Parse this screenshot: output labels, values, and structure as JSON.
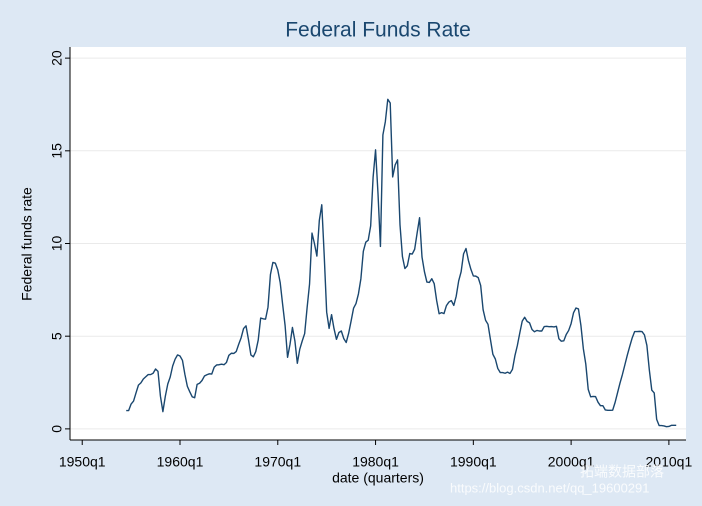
{
  "chart_data": {
    "type": "line",
    "title": "Federal Funds Rate",
    "x_label": "date (quarters)",
    "y_label": "Federal funds rate",
    "watermark": [
      "拓端数据部落",
      "https://blog.csdn.net/qq_19600291"
    ],
    "x": [
      "1954q3",
      "1954q4",
      "1955q1",
      "1955q2",
      "1955q3",
      "1955q4",
      "1956q1",
      "1956q2",
      "1956q3",
      "1956q4",
      "1957q1",
      "1957q2",
      "1957q3",
      "1957q4",
      "1958q1",
      "1958q2",
      "1958q3",
      "1958q4",
      "1959q1",
      "1959q2",
      "1959q3",
      "1959q4",
      "1960q1",
      "1960q2",
      "1960q3",
      "1960q4",
      "1961q1",
      "1961q2",
      "1961q3",
      "1961q4",
      "1962q1",
      "1962q2",
      "1962q3",
      "1962q4",
      "1963q1",
      "1963q2",
      "1963q3",
      "1963q4",
      "1964q1",
      "1964q2",
      "1964q3",
      "1964q4",
      "1965q1",
      "1965q2",
      "1965q3",
      "1965q4",
      "1966q1",
      "1966q2",
      "1966q3",
      "1966q4",
      "1967q1",
      "1967q2",
      "1967q3",
      "1967q4",
      "1968q1",
      "1968q2",
      "1968q3",
      "1968q4",
      "1969q1",
      "1969q2",
      "1969q3",
      "1969q4",
      "1970q1",
      "1970q2",
      "1970q3",
      "1970q4",
      "1971q1",
      "1971q2",
      "1971q3",
      "1971q4",
      "1972q1",
      "1972q2",
      "1972q3",
      "1972q4",
      "1973q1",
      "1973q2",
      "1973q3",
      "1973q4",
      "1974q1",
      "1974q2",
      "1974q3",
      "1974q4",
      "1975q1",
      "1975q2",
      "1975q3",
      "1975q4",
      "1976q1",
      "1976q2",
      "1976q3",
      "1976q4",
      "1977q1",
      "1977q2",
      "1977q3",
      "1977q4",
      "1978q1",
      "1978q2",
      "1978q3",
      "1978q4",
      "1979q1",
      "1979q2",
      "1979q3",
      "1979q4",
      "1980q1",
      "1980q2",
      "1980q3",
      "1980q4",
      "1981q1",
      "1981q2",
      "1981q3",
      "1981q4",
      "1982q1",
      "1982q2",
      "1982q3",
      "1982q4",
      "1983q1",
      "1983q2",
      "1983q3",
      "1983q4",
      "1984q1",
      "1984q2",
      "1984q3",
      "1984q4",
      "1985q1",
      "1985q2",
      "1985q3",
      "1985q4",
      "1986q1",
      "1986q2",
      "1986q3",
      "1986q4",
      "1987q1",
      "1987q2",
      "1987q3",
      "1987q4",
      "1988q1",
      "1988q2",
      "1988q3",
      "1988q4",
      "1989q1",
      "1989q2",
      "1989q3",
      "1989q4",
      "1990q1",
      "1990q2",
      "1990q3",
      "1990q4",
      "1991q1",
      "1991q2",
      "1991q3",
      "1991q4",
      "1992q1",
      "1992q2",
      "1992q3",
      "1992q4",
      "1993q1",
      "1993q2",
      "1993q3",
      "1993q4",
      "1994q1",
      "1994q2",
      "1994q3",
      "1994q4",
      "1995q1",
      "1995q2",
      "1995q3",
      "1995q4",
      "1996q1",
      "1996q2",
      "1996q3",
      "1996q4",
      "1997q1",
      "1997q2",
      "1997q3",
      "1997q4",
      "1998q1",
      "1998q2",
      "1998q3",
      "1998q4",
      "1999q1",
      "1999q2",
      "1999q3",
      "1999q4",
      "2000q1",
      "2000q2",
      "2000q3",
      "2000q4",
      "2001q1",
      "2001q2",
      "2001q3",
      "2001q4",
      "2002q1",
      "2002q2",
      "2002q3",
      "2002q4",
      "2003q1",
      "2003q2",
      "2003q3",
      "2003q4",
      "2004q1",
      "2004q2",
      "2004q3",
      "2004q4",
      "2005q1",
      "2005q2",
      "2005q3",
      "2005q4",
      "2006q1",
      "2006q2",
      "2006q3",
      "2006q4",
      "2007q1",
      "2007q2",
      "2007q3",
      "2007q4",
      "2008q1",
      "2008q2",
      "2008q3",
      "2008q4",
      "2009q1",
      "2009q2",
      "2009q3",
      "2009q4",
      "2010q1",
      "2010q2",
      "2010q3",
      "2010q4"
    ],
    "series": [
      {
        "name": "Federal funds rate",
        "color": "#1a476f",
        "values": [
          0.99,
          0.99,
          1.34,
          1.5,
          1.94,
          2.36,
          2.48,
          2.69,
          2.81,
          2.93,
          2.93,
          3.0,
          3.23,
          3.1,
          1.76,
          0.93,
          1.76,
          2.42,
          2.8,
          3.39,
          3.76,
          3.99,
          3.93,
          3.7,
          2.94,
          2.3,
          2.0,
          1.73,
          1.68,
          2.4,
          2.46,
          2.61,
          2.85,
          2.92,
          2.97,
          2.96,
          3.33,
          3.45,
          3.46,
          3.49,
          3.46,
          3.58,
          3.97,
          4.08,
          4.07,
          4.17,
          4.56,
          4.91,
          5.41,
          5.56,
          4.82,
          3.99,
          3.89,
          4.17,
          4.79,
          5.98,
          5.94,
          5.92,
          6.57,
          8.33,
          8.98,
          8.94,
          8.57,
          7.88,
          6.7,
          5.57,
          3.86,
          4.56,
          5.47,
          4.75,
          3.54,
          4.3,
          4.74,
          5.14,
          6.54,
          7.82,
          10.56,
          10.0,
          9.32,
          11.25,
          12.09,
          9.35,
          6.3,
          5.42,
          6.16,
          5.41,
          4.83,
          5.2,
          5.28,
          4.87,
          4.66,
          5.16,
          5.82,
          6.51,
          6.76,
          7.28,
          8.1,
          9.58,
          10.07,
          10.18,
          10.95,
          13.58,
          15.05,
          12.69,
          9.84,
          15.85,
          16.57,
          17.78,
          17.58,
          13.59,
          14.23,
          14.51,
          11.01,
          9.29,
          8.65,
          8.8,
          9.46,
          9.43,
          9.69,
          10.56,
          11.39,
          9.27,
          8.48,
          7.92,
          7.9,
          8.1,
          7.83,
          6.92,
          6.21,
          6.27,
          6.22,
          6.65,
          6.84,
          6.92,
          6.66,
          7.16,
          7.98,
          8.47,
          9.44,
          9.73,
          9.08,
          8.61,
          8.25,
          8.24,
          8.16,
          7.74,
          6.43,
          5.86,
          5.64,
          4.82,
          4.02,
          3.77,
          3.26,
          3.04,
          3.04,
          3.0,
          3.06,
          2.99,
          3.21,
          3.94,
          4.49,
          5.17,
          5.81,
          6.02,
          5.8,
          5.72,
          5.36,
          5.24,
          5.31,
          5.28,
          5.28,
          5.52,
          5.53,
          5.51,
          5.52,
          5.5,
          5.53,
          4.86,
          4.73,
          4.75,
          5.09,
          5.31,
          5.68,
          6.27,
          6.52,
          6.47,
          5.59,
          4.33,
          3.5,
          2.13,
          1.73,
          1.75,
          1.74,
          1.44,
          1.25,
          1.25,
          1.02,
          1.0,
          1.0,
          1.01,
          1.43,
          1.95,
          2.47,
          2.94,
          3.46,
          3.98,
          4.46,
          4.91,
          5.25,
          5.25,
          5.26,
          5.25,
          5.07,
          4.5,
          3.18,
          2.09,
          1.94,
          0.51,
          0.18,
          0.18,
          0.16,
          0.12,
          0.13,
          0.19,
          0.19,
          0.19
        ]
      }
    ],
    "xlim": [
      "1948q4",
      "2011q4"
    ],
    "xticks": [
      "1950q1",
      "1960q1",
      "1970q1",
      "1980q1",
      "1990q1",
      "2000q1",
      "2010q1"
    ],
    "ylim": [
      -0.6,
      20.6
    ],
    "yticks": [
      0,
      5,
      10,
      15,
      20
    ],
    "grid": true
  }
}
